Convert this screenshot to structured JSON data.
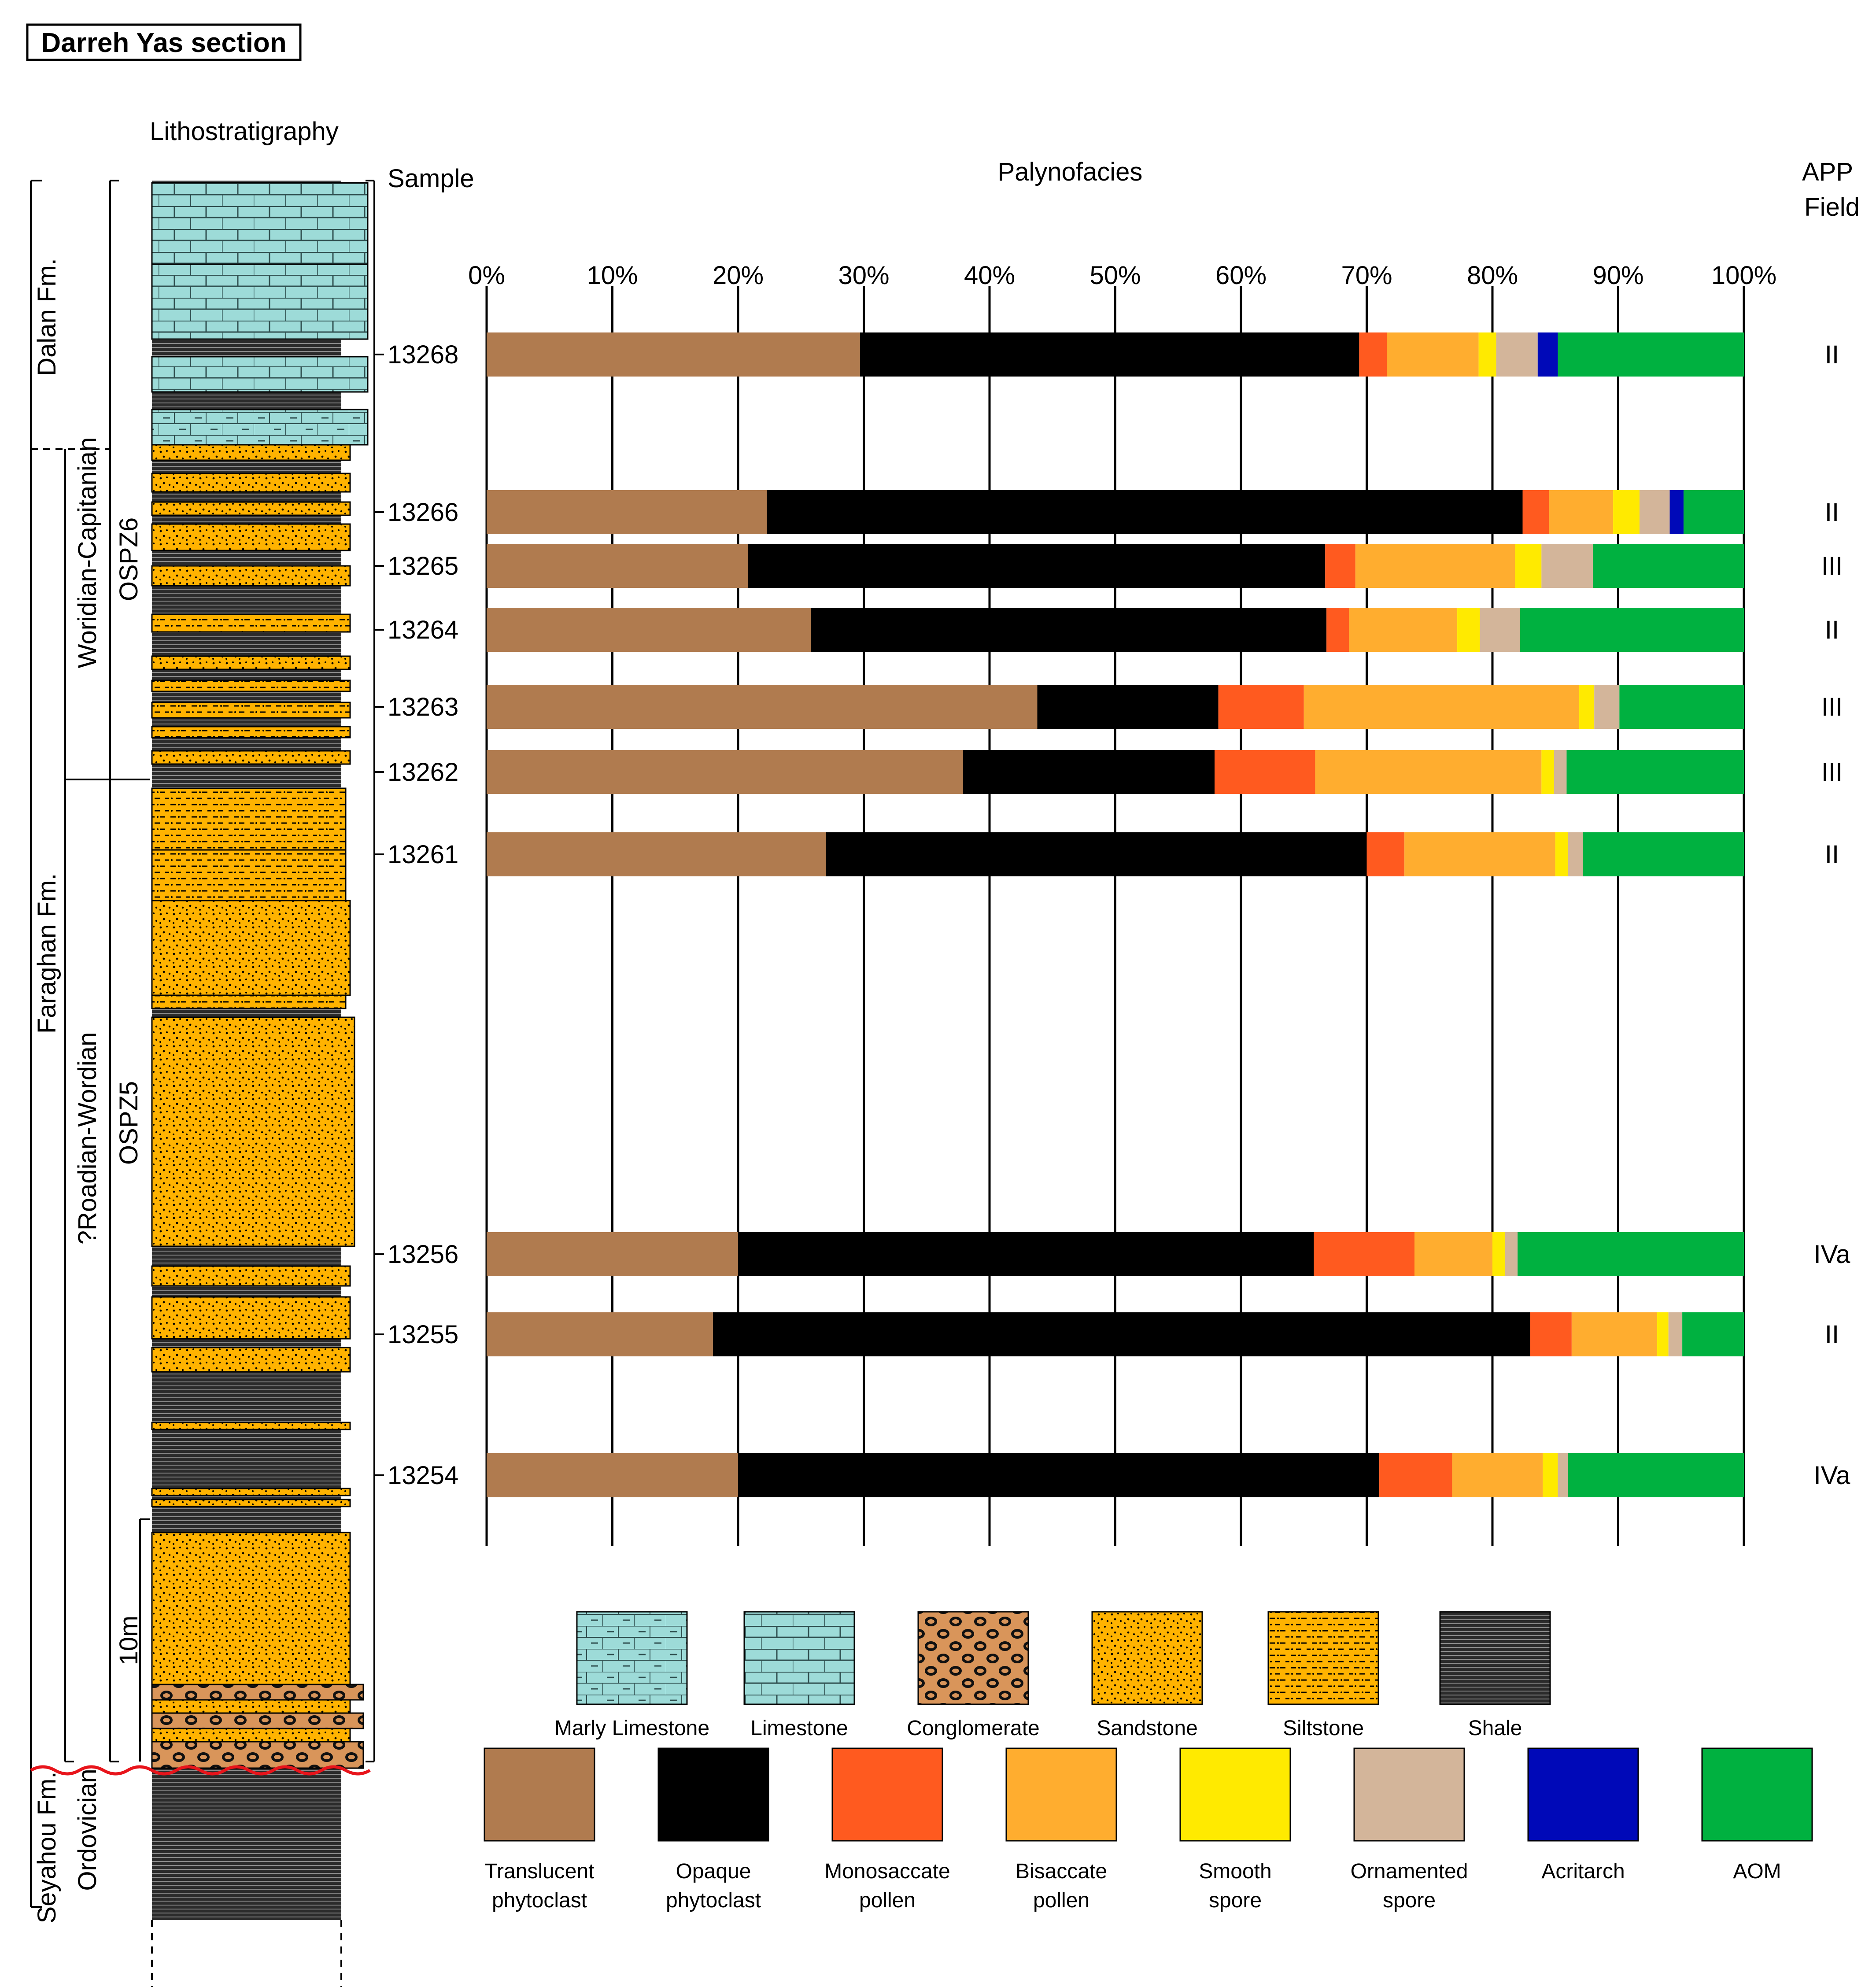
{
  "figure": {
    "title": "Darreh Yas section",
    "lith_heading": "Lithostratigraphy",
    "sample_heading": "Sample",
    "palyno_heading": "Palynofacies",
    "app_heading_line1": "APP",
    "app_heading_line2": "Field",
    "scale_label": "10m"
  },
  "formations": [
    "Dalan Fm.",
    "Faraghan Fm.",
    "Seyahou Fm."
  ],
  "ages": [
    "Woridian-Capitanian",
    "?Roadian-Wordian",
    "Ordovician"
  ],
  "zones": [
    "OSPZ6",
    "OSPZ5"
  ],
  "lithology_legend": [
    "Marly Limestone",
    "Limestone",
    "Conglomerate",
    "Sandstone",
    "Siltstone",
    "Shale"
  ],
  "colors": {
    "translucent": "#b07b4f",
    "opaque": "#000000",
    "monosaccate": "#ff5a1f",
    "bisaccate": "#ffad2f",
    "smooth": "#ffea00",
    "ornamented": "#d3b59a",
    "acritarch": "#0009b8",
    "aom": "#00b140",
    "limestone": "#9ddbd8",
    "sand": "#ffb300",
    "shale": "#2b2b2b",
    "congl": "#d9955a",
    "unconformity": "#e8141b"
  },
  "chart_data": {
    "type": "bar",
    "orientation": "horizontal",
    "stacked": true,
    "title": "Palynofacies",
    "xlabel": "",
    "ylabel": "Sample",
    "xlim": [
      0,
      100
    ],
    "x_ticks": [
      "0%",
      "10%",
      "20%",
      "30%",
      "40%",
      "50%",
      "60%",
      "70%",
      "80%",
      "90%",
      "100%"
    ],
    "components": [
      {
        "key": "translucent",
        "label": [
          "Translucent",
          "phytoclast"
        ]
      },
      {
        "key": "opaque",
        "label": [
          "Opaque",
          "phytoclast"
        ]
      },
      {
        "key": "monosaccate",
        "label": [
          "Monosaccate",
          "pollen"
        ]
      },
      {
        "key": "bisaccate",
        "label": [
          "Bisaccate",
          "pollen"
        ]
      },
      {
        "key": "smooth",
        "label": [
          "Smooth",
          "spore"
        ]
      },
      {
        "key": "ornamented",
        "label": [
          "Ornamented",
          "spore"
        ]
      },
      {
        "key": "acritarch",
        "label": [
          "Acritarch"
        ]
      },
      {
        "key": "aom",
        "label": [
          "AOM"
        ]
      }
    ],
    "samples": [
      {
        "label": "13268",
        "app": "II",
        "values": [
          29.7,
          39.7,
          2.2,
          7.3,
          1.4,
          3.3,
          1.6,
          14.8
        ]
      },
      {
        "label": "13266",
        "app": "II",
        "values": [
          22.3,
          60.1,
          2.1,
          5.1,
          2.1,
          2.4,
          1.1,
          4.8
        ]
      },
      {
        "label": "13265",
        "app": "III",
        "values": [
          20.8,
          45.9,
          2.4,
          12.7,
          2.1,
          4.1,
          0,
          12.0
        ]
      },
      {
        "label": "13264",
        "app": "II",
        "values": [
          25.8,
          41.0,
          1.8,
          8.6,
          1.8,
          3.2,
          0,
          17.8
        ]
      },
      {
        "label": "13263",
        "app": "III",
        "values": [
          43.8,
          14.4,
          6.8,
          21.9,
          1.2,
          2.0,
          0,
          9.9
        ]
      },
      {
        "label": "13262",
        "app": "III",
        "values": [
          37.9,
          20.0,
          8.0,
          18.0,
          1.0,
          1.0,
          0,
          14.1
        ]
      },
      {
        "label": "13261",
        "app": "II",
        "values": [
          27.0,
          43.0,
          3.0,
          12.0,
          1.0,
          1.2,
          0,
          12.8
        ]
      },
      {
        "label": "13256",
        "app": "IVa",
        "values": [
          20.0,
          45.8,
          8.0,
          6.2,
          1.0,
          1.0,
          0,
          18.0
        ]
      },
      {
        "label": "13255",
        "app": "II",
        "values": [
          18.0,
          65.0,
          3.3,
          6.8,
          0.9,
          1.1,
          0,
          4.9
        ]
      },
      {
        "label": "13254",
        "app": "IVa",
        "values": [
          20.0,
          51.0,
          5.8,
          7.2,
          1.2,
          0.8,
          0,
          14.0
        ]
      }
    ]
  }
}
